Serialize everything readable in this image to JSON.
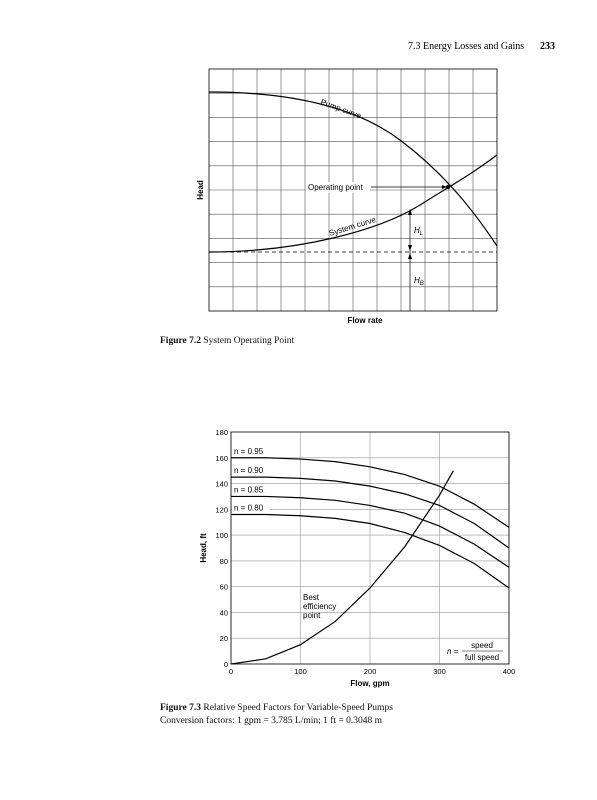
{
  "header": {
    "section": "7.3 Energy Losses and Gains",
    "page": "233"
  },
  "figure_7_2": {
    "pump_curve": "Pump curve",
    "operating_point": "Operating point",
    "system_curve": "System curve",
    "h_l": "H",
    "h_l_sub": "L",
    "h_b": "H",
    "h_b_sub": "B",
    "y_label": "Head",
    "x_label": "Flow rate",
    "caption_label": "Figure 7.2",
    "caption_text": "System Operating Point"
  },
  "chart_data": {
    "type": "line",
    "y_label": "Head, ft",
    "x_label": "Flow, gpm",
    "xlim": [
      0,
      400
    ],
    "xticks": [
      0,
      100,
      200,
      300,
      400
    ],
    "ylim": [
      0,
      180
    ],
    "yticks": [
      0,
      20,
      40,
      60,
      80,
      100,
      120,
      140,
      160,
      180
    ],
    "grid": true,
    "series": [
      {
        "name": "n = 0.95",
        "color": "#000000",
        "x": [
          0,
          50,
          100,
          150,
          200,
          250,
          300,
          350,
          400
        ],
        "values": [
          160,
          160,
          159,
          157,
          153,
          147,
          138,
          124,
          106
        ]
      },
      {
        "name": "n = 0.90",
        "color": "#000000",
        "x": [
          0,
          50,
          100,
          150,
          200,
          250,
          300,
          350,
          400
        ],
        "values": [
          145,
          145,
          144,
          142,
          138,
          132,
          123,
          109,
          90
        ]
      },
      {
        "name": "n = 0.85",
        "color": "#000000",
        "x": [
          0,
          50,
          100,
          150,
          200,
          250,
          300,
          350,
          400
        ],
        "values": [
          130,
          130,
          129,
          127,
          123,
          117,
          107,
          93,
          75
        ]
      },
      {
        "name": "n = 0.80",
        "color": "#000000",
        "x": [
          0,
          50,
          100,
          150,
          200,
          250,
          300,
          350,
          400
        ],
        "values": [
          116,
          116,
          115,
          113,
          109,
          102,
          92,
          78,
          59
        ]
      },
      {
        "name": "Best efficiency point",
        "color": "#000000",
        "x": [
          0,
          50,
          100,
          150,
          200,
          250,
          300,
          320
        ],
        "values": [
          0,
          4,
          15,
          33,
          59,
          91,
          131,
          150
        ]
      }
    ],
    "annotation": [
      "Best",
      "efficiency",
      "point"
    ],
    "formula": {
      "lhs": "n =",
      "numerator": "speed",
      "denominator": "full speed"
    }
  },
  "figure_7_3": {
    "caption_label": "Figure 7.3",
    "caption_text": "Relative Speed Factors for Variable-Speed Pumps",
    "caption_line2": "Conversion factors: 1 gpm = 3.785 L/min; 1 ft = 0.3048 m"
  }
}
